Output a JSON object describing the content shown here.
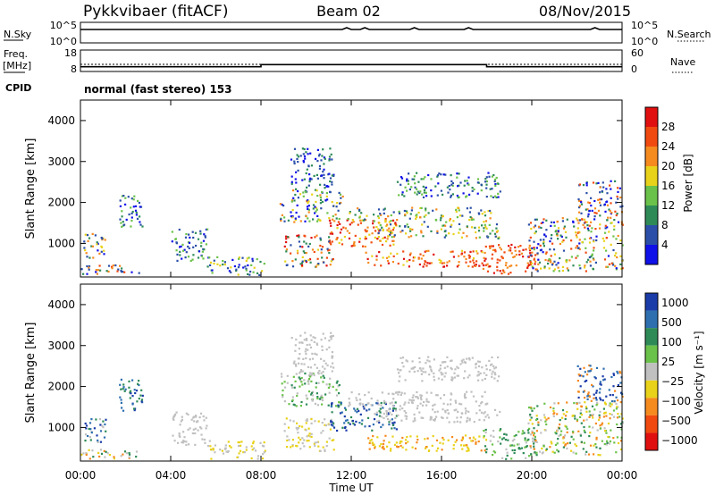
{
  "header": {
    "station": "Pykkvibaer (fitACF)",
    "beam": "Beam 02",
    "date": "08/Nov/2015"
  },
  "nsky_panel": {
    "left_label": "N.Sky",
    "right_label": "N.Search",
    "left_ticks": [
      "10^5",
      "10^0"
    ],
    "right_ticks": [
      "10^5",
      "10^0"
    ]
  },
  "freq_panel": {
    "left_label_1": "Freq.",
    "left_label_2": "[MHz]",
    "right_label": "Nave",
    "left_ticks": [
      "18",
      "8"
    ],
    "right_ticks": [
      "60",
      "0"
    ],
    "freq_steps": [
      {
        "t": 0,
        "v": 10.2
      },
      {
        "t": 8.0,
        "v": 10.2
      },
      {
        "t": 8.0,
        "v": 11.2
      },
      {
        "t": 18.0,
        "v": 11.2
      },
      {
        "t": 18.0,
        "v": 10.2
      },
      {
        "t": 24,
        "v": 10.2
      }
    ],
    "nave_level": 20
  },
  "cpid": {
    "label": "CPID",
    "text": "normal (fast stereo) 153"
  },
  "power_panel": {
    "ylabel": "Slant Range [km]",
    "yticks": [
      "1000",
      "2000",
      "3000",
      "4000"
    ],
    "colorbar_label": "Power [dB]",
    "colorbar_ticks": [
      "4",
      "8",
      "12",
      "16",
      "20",
      "24",
      "28"
    ],
    "colors": [
      "#1010e8",
      "#2b4fa8",
      "#2e8b57",
      "#6bc24a",
      "#e8d21a",
      "#f58a1f",
      "#f04a10",
      "#e01010"
    ]
  },
  "velocity_panel": {
    "ylabel": "Slant Range [km]",
    "yticks": [
      "1000",
      "2000",
      "3000",
      "4000"
    ],
    "colorbar_label": "Velocity  [m s⁻¹]",
    "colorbar_ticks": [
      "1000",
      "500",
      "100",
      "25",
      "−25",
      "−100",
      "−500",
      "−1000"
    ],
    "colors": [
      "#1a3ca8",
      "#2e6fb0",
      "#2e8b57",
      "#6bc24a",
      "#c0c0c0",
      "#e8d21a",
      "#f58a1f",
      "#f04a10",
      "#e01010"
    ]
  },
  "xaxis": {
    "ticks": [
      "00:00",
      "04:00",
      "08:00",
      "12:00",
      "16:00",
      "20:00",
      "00:00"
    ],
    "label": "Time UT"
  },
  "chart_data": {
    "type": "heatmap",
    "x_range_hours": [
      0,
      24
    ],
    "y_range_km": [
      180,
      4500
    ],
    "power_features": [
      {
        "t0": 0.0,
        "t1": 2.6,
        "r0": 200,
        "r1": 450,
        "colors": [
          0,
          1,
          2,
          5,
          6
        ]
      },
      {
        "t0": 0.1,
        "t1": 1.1,
        "r0": 600,
        "r1": 1250,
        "colors": [
          0,
          1,
          2,
          4,
          5
        ]
      },
      {
        "t0": 1.7,
        "t1": 2.8,
        "r0": 1350,
        "r1": 2150,
        "colors": [
          0,
          1,
          2,
          3
        ]
      },
      {
        "t0": 4.0,
        "t1": 5.6,
        "r0": 550,
        "r1": 1350,
        "colors": [
          0,
          1,
          2,
          3
        ]
      },
      {
        "t0": 5.6,
        "t1": 8.2,
        "r0": 200,
        "r1": 650,
        "colors": [
          0,
          1,
          2,
          3,
          4
        ]
      },
      {
        "t0": 8.8,
        "t1": 11.6,
        "r0": 1500,
        "r1": 2300,
        "colors": [
          0,
          1,
          2,
          3,
          4,
          5
        ]
      },
      {
        "t0": 9.0,
        "t1": 11.2,
        "r0": 400,
        "r1": 1200,
        "colors": [
          1,
          2,
          4,
          5,
          6,
          7
        ]
      },
      {
        "t0": 9.3,
        "t1": 11.2,
        "r0": 2300,
        "r1": 3300,
        "colors": [
          0,
          1,
          2
        ]
      },
      {
        "t0": 11.0,
        "t1": 14.0,
        "r0": 900,
        "r1": 1600,
        "colors": [
          4,
          5,
          6,
          7
        ]
      },
      {
        "t0": 11.8,
        "t1": 18.2,
        "r0": 1500,
        "r1": 1850,
        "colors": [
          1,
          2,
          3,
          4,
          5
        ]
      },
      {
        "t0": 13.0,
        "t1": 18.6,
        "r0": 1100,
        "r1": 1450,
        "colors": [
          1,
          2,
          3,
          4,
          5
        ]
      },
      {
        "t0": 12.6,
        "t1": 18.0,
        "r0": 400,
        "r1": 800,
        "colors": [
          4,
          5,
          6,
          7
        ]
      },
      {
        "t0": 14.0,
        "t1": 18.6,
        "r0": 2100,
        "r1": 2700,
        "colors": [
          0,
          1,
          2,
          3
        ]
      },
      {
        "t0": 17.8,
        "t1": 20.2,
        "r0": 200,
        "r1": 950,
        "colors": [
          5,
          6,
          7
        ]
      },
      {
        "t0": 19.8,
        "t1": 24.0,
        "r0": 300,
        "r1": 1600,
        "colors": [
          0,
          1,
          2,
          3,
          4,
          5,
          6
        ]
      },
      {
        "t0": 22.0,
        "t1": 24.0,
        "r0": 1600,
        "r1": 2500,
        "colors": [
          0,
          1,
          2,
          5,
          6
        ]
      }
    ],
    "velocity_features": [
      {
        "t0": 0.0,
        "t1": 2.6,
        "r0": 200,
        "r1": 450,
        "colors": [
          4,
          5,
          6,
          2
        ]
      },
      {
        "t0": 0.1,
        "t1": 1.1,
        "r0": 600,
        "r1": 1250,
        "colors": [
          0,
          1,
          2,
          4
        ]
      },
      {
        "t0": 1.7,
        "t1": 2.8,
        "r0": 1350,
        "r1": 2150,
        "colors": [
          0,
          1,
          2
        ]
      },
      {
        "t0": 4.0,
        "t1": 5.6,
        "r0": 550,
        "r1": 1350,
        "colors": [
          4
        ]
      },
      {
        "t0": 5.6,
        "t1": 8.2,
        "r0": 200,
        "r1": 650,
        "colors": [
          4,
          5
        ]
      },
      {
        "t0": 8.8,
        "t1": 11.6,
        "r0": 1500,
        "r1": 2300,
        "colors": [
          4,
          2,
          3
        ]
      },
      {
        "t0": 9.0,
        "t1": 11.2,
        "r0": 400,
        "r1": 1200,
        "colors": [
          4,
          5
        ]
      },
      {
        "t0": 9.3,
        "t1": 11.2,
        "r0": 2300,
        "r1": 3300,
        "colors": [
          4
        ]
      },
      {
        "t0": 11.0,
        "t1": 14.0,
        "r0": 900,
        "r1": 1600,
        "colors": [
          0,
          1,
          2
        ]
      },
      {
        "t0": 11.8,
        "t1": 18.2,
        "r0": 1500,
        "r1": 1850,
        "colors": [
          4
        ]
      },
      {
        "t0": 13.0,
        "t1": 18.6,
        "r0": 1100,
        "r1": 1450,
        "colors": [
          4
        ]
      },
      {
        "t0": 12.6,
        "t1": 18.0,
        "r0": 400,
        "r1": 800,
        "colors": [
          5,
          6
        ]
      },
      {
        "t0": 14.0,
        "t1": 18.6,
        "r0": 2100,
        "r1": 2700,
        "colors": [
          4
        ]
      },
      {
        "t0": 17.8,
        "t1": 20.2,
        "r0": 200,
        "r1": 950,
        "colors": [
          4,
          2,
          3
        ]
      },
      {
        "t0": 19.8,
        "t1": 24.0,
        "r0": 300,
        "r1": 1600,
        "colors": [
          4,
          5,
          6,
          2,
          3
        ]
      },
      {
        "t0": 22.0,
        "t1": 24.0,
        "r0": 1600,
        "r1": 2500,
        "colors": [
          0,
          1,
          6
        ]
      }
    ]
  }
}
